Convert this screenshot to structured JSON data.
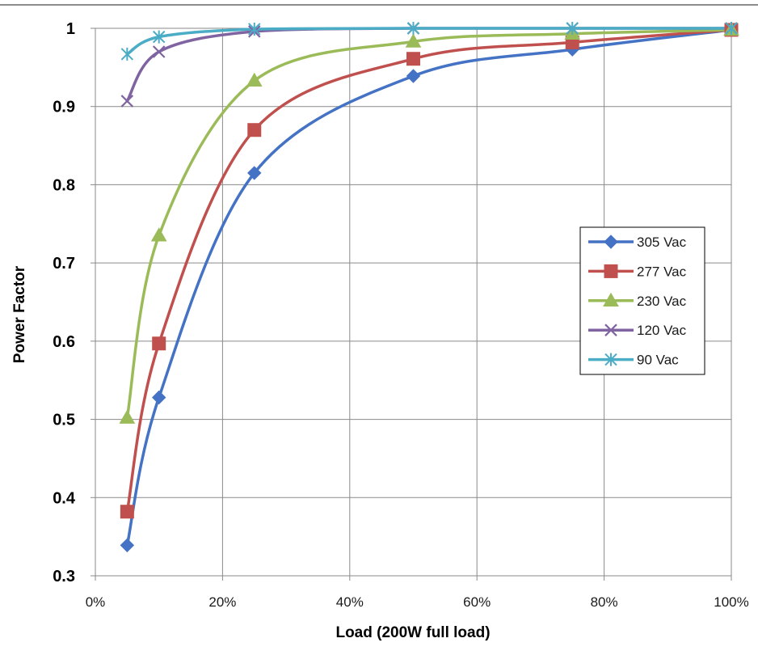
{
  "chart_data": {
    "type": "line",
    "title": "",
    "xlabel": "Load (200W full load)",
    "ylabel": "Power Factor",
    "xlim": [
      0,
      1
    ],
    "ylim": [
      0.3,
      1
    ],
    "x_ticks": [
      0,
      0.2,
      0.4,
      0.6,
      0.8,
      1.0
    ],
    "x_tick_labels": [
      "0%",
      "20%",
      "40%",
      "60%",
      "80%",
      "100%"
    ],
    "y_ticks": [
      0.3,
      0.4,
      0.5,
      0.6,
      0.7,
      0.8,
      0.9,
      1
    ],
    "y_tick_labels": [
      "0.3",
      "0.4",
      "0.5",
      "0.6",
      "0.7",
      "0.8",
      "0.9",
      "1"
    ],
    "grid": true,
    "legend_position": "right",
    "x": [
      0.05,
      0.1,
      0.25,
      0.5,
      0.75,
      1.0
    ],
    "series": [
      {
        "name": "305 Vac",
        "color": "#4472C4",
        "marker": "diamond",
        "values": [
          0.339,
          0.528,
          0.815,
          0.939,
          0.973,
          0.998
        ]
      },
      {
        "name": "277 Vac",
        "color": "#C0504D",
        "marker": "square",
        "values": [
          0.382,
          0.597,
          0.87,
          0.961,
          0.982,
          0.998
        ]
      },
      {
        "name": "230 Vac",
        "color": "#9BBB59",
        "marker": "triangle",
        "values": [
          0.502,
          0.735,
          0.933,
          0.983,
          0.993,
          0.998
        ]
      },
      {
        "name": "120 Vac",
        "color": "#8064A2",
        "marker": "x",
        "values": [
          0.907,
          0.97,
          0.996,
          1.0,
          1.0,
          1.0
        ]
      },
      {
        "name": "90 Vac",
        "color": "#4BACC6",
        "marker": "star",
        "values": [
          0.967,
          0.989,
          0.999,
          1.0,
          1.0,
          1.0
        ]
      }
    ]
  }
}
